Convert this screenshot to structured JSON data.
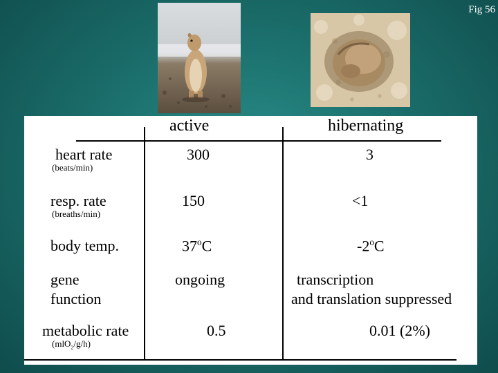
{
  "fig_label": "Fig 56",
  "columns": {
    "active": "active",
    "hibernating": "hibernating"
  },
  "rows": [
    {
      "label": "heart rate",
      "unit": "(beats/min)",
      "active": "300",
      "hibernating": "3"
    },
    {
      "label": "resp. rate",
      "unit": "(breaths/min)",
      "active": "150",
      "hibernating": "<1"
    },
    {
      "label": "body temp.",
      "active_num": "37",
      "active_sup": "o",
      "active_unit": "C",
      "hib_num": "-2",
      "hib_sup": "o",
      "hib_unit": "C"
    },
    {
      "label_line1": "gene",
      "label_line2": "function",
      "active": "ongoing",
      "hib_line1": "transcription",
      "hib_line2": "and translation suppressed"
    },
    {
      "label": "metabolic rate",
      "unit_pre": "(mlO",
      "unit_sub": "2",
      "unit_post": "/g/h)",
      "active": "0.5",
      "hibernating": "0.01 (2%)"
    }
  ],
  "images": {
    "active_photo": "ground-squirrel-standing-photo",
    "hibernating_photo": "ground-squirrel-curled-hibernating-photo"
  }
}
